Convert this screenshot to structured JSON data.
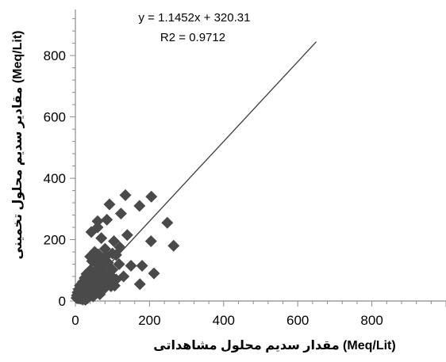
{
  "chart_data": {
    "type": "scatter",
    "title": "",
    "xlabel": "مقدار سدیم محلول مشاهداتی (Meq/Lit)",
    "ylabel": "مقادیر سدیم محلول تخمینی (Meq/Lit)",
    "xlim": [
      0,
      1000
    ],
    "ylim": [
      0,
      950
    ],
    "x_ticks": [
      0,
      200,
      400,
      600,
      800
    ],
    "y_ticks": [
      0,
      200,
      400,
      600,
      800
    ],
    "x_tick_labels": [
      "0",
      "200",
      "400",
      "600",
      "800"
    ],
    "y_tick_labels": [
      "0",
      "200",
      "400",
      "600",
      "800"
    ],
    "grid": false,
    "legend": false,
    "marker": "diamond",
    "marker_color": "#4a4a4a",
    "trendline": {
      "equation": "y = 1.1452x + 320.31",
      "r2": "R2 = 0.9712",
      "from": [
        0,
        0
      ],
      "to": [
        650,
        845
      ],
      "color": "#3a3a3a"
    },
    "series": [
      {
        "x": [
          135,
          205,
          92,
          173,
          123,
          60,
          85,
          248,
          60,
          43,
          70,
          140,
          104,
          120,
          265,
          204,
          80,
          212,
          110,
          180,
          52,
          40,
          62,
          72,
          85,
          100,
          118,
          88,
          45,
          55,
          150,
          174,
          60,
          74,
          92,
          100,
          130,
          110,
          40,
          62,
          76,
          94,
          30,
          50,
          68,
          82,
          25,
          38,
          52,
          72,
          90,
          106,
          20,
          34,
          47,
          62,
          78,
          96,
          12,
          25,
          37,
          50,
          63,
          76,
          9,
          18,
          27,
          37,
          46,
          56,
          66,
          6,
          12,
          18,
          25,
          32,
          40,
          48,
          4,
          9,
          14,
          20,
          26,
          33,
          3,
          6,
          10,
          15,
          20,
          27
        ],
        "y": [
          345,
          340,
          315,
          310,
          285,
          260,
          265,
          255,
          240,
          225,
          205,
          215,
          195,
          175,
          180,
          195,
          170,
          90,
          150,
          115,
          160,
          145,
          152,
          140,
          148,
          155,
          120,
          125,
          130,
          125,
          115,
          55,
          108,
          112,
          95,
          102,
          80,
          70,
          100,
          105,
          95,
          85,
          88,
          92,
          80,
          75,
          75,
          68,
          72,
          65,
          60,
          50,
          62,
          60,
          58,
          55,
          52,
          48,
          50,
          48,
          45,
          40,
          42,
          38,
          38,
          35,
          33,
          30,
          28,
          25,
          22,
          28,
          26,
          24,
          22,
          20,
          18,
          15,
          18,
          17,
          15,
          13,
          11,
          9,
          10,
          9,
          8,
          7,
          5,
          4
        ]
      }
    ]
  }
}
